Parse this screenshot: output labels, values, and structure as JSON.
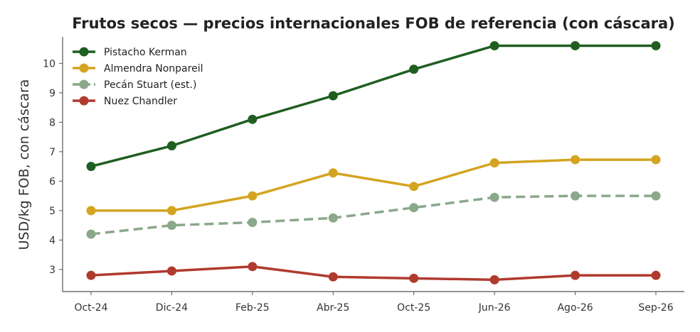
{
  "chart_data": {
    "type": "line",
    "title": "Frutos secos — precios internacionales FOB de referencia (con cáscara)",
    "xlabel": "",
    "ylabel": "USD/kg FOB, con cáscara",
    "categories": [
      "Oct-24",
      "Dic-24",
      "Feb-25",
      "Abr-25",
      "Oct-25",
      "Jun-26",
      "Ago-26",
      "Sep-26"
    ],
    "ylim": [
      2.25,
      10.9
    ],
    "yticks": [
      3,
      4,
      5,
      6,
      7,
      8,
      9,
      10
    ],
    "grid": false,
    "legend_position": "top-left",
    "series": [
      {
        "name": "Pistacho Kerman",
        "color": "#1f5e20",
        "dashed": false,
        "values": [
          6.5,
          7.2,
          8.1,
          8.9,
          9.8,
          10.6,
          10.6,
          10.6
        ]
      },
      {
        "name": "Almendra Nonpareil",
        "color": "#d4a421",
        "dashed": false,
        "values": [
          5.0,
          5.0,
          5.5,
          6.28,
          5.82,
          6.62,
          6.73,
          6.73
        ]
      },
      {
        "name": "Pecán Stuart (est.)",
        "color": "#8aa88a",
        "dashed": true,
        "values": [
          4.2,
          4.5,
          4.6,
          4.75,
          5.1,
          5.45,
          5.5,
          5.5
        ]
      },
      {
        "name": "Nuez Chandler",
        "color": "#b03a2e",
        "dashed": false,
        "values": [
          2.8,
          2.95,
          3.1,
          2.75,
          2.7,
          2.65,
          2.8,
          2.8
        ]
      }
    ]
  }
}
